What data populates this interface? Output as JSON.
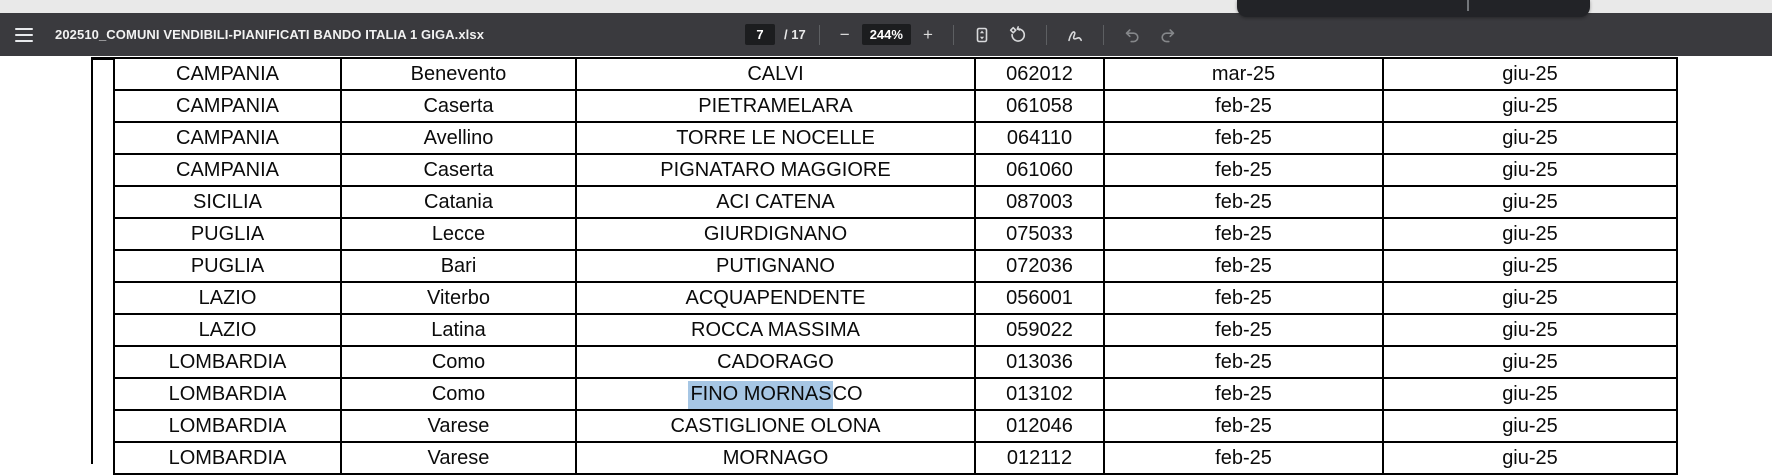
{
  "colors": {
    "toolbar_bg": "#3a3a3e",
    "control_box_bg": "#1c1d1f",
    "top_strip": "#e9e9e9",
    "overlay_chip_bg": "#222327",
    "selection_highlight": "#a6c6e4",
    "table_border": "#000000"
  },
  "toolbar": {
    "menu_icon": "hamburger-icon",
    "filename": "202510_COMUNI VENDIBILI-PIANIFICATI BANDO ITALIA 1 GIGA.xlsx",
    "page_number": "7",
    "page_count_label": "/ 17",
    "zoom_out_label": "−",
    "zoom_level": "244%",
    "zoom_in_label": "+",
    "icons": [
      "fit-to-page-icon",
      "rotate-icon",
      "draw-icon",
      "undo-icon",
      "redo-icon"
    ]
  },
  "table": {
    "rows": [
      {
        "cells": [
          "CAMPANIA",
          "Benevento",
          "CALVI",
          "062012",
          "mar-25",
          "giu-25"
        ]
      },
      {
        "cells": [
          "CAMPANIA",
          "Caserta",
          "PIETRAMELARA",
          "061058",
          "feb-25",
          "giu-25"
        ]
      },
      {
        "cells": [
          "CAMPANIA",
          "Avellino",
          "TORRE LE NOCELLE",
          "064110",
          "feb-25",
          "giu-25"
        ]
      },
      {
        "cells": [
          "CAMPANIA",
          "Caserta",
          "PIGNATARO MAGGIORE",
          "061060",
          "feb-25",
          "giu-25"
        ]
      },
      {
        "cells": [
          "SICILIA",
          "Catania",
          "ACI CATENA",
          "087003",
          "feb-25",
          "giu-25"
        ]
      },
      {
        "cells": [
          "PUGLIA",
          "Lecce",
          "GIURDIGNANO",
          "075033",
          "feb-25",
          "giu-25"
        ]
      },
      {
        "cells": [
          "PUGLIA",
          "Bari",
          "PUTIGNANO",
          "072036",
          "feb-25",
          "giu-25"
        ]
      },
      {
        "cells": [
          "LAZIO",
          "Viterbo",
          "ACQUAPENDENTE",
          "056001",
          "feb-25",
          "giu-25"
        ]
      },
      {
        "cells": [
          "LAZIO",
          "Latina",
          "ROCCA MASSIMA",
          "059022",
          "feb-25",
          "giu-25"
        ]
      },
      {
        "cells": [
          "LOMBARDIA",
          "Como",
          "CADORAGO",
          "013036",
          "feb-25",
          "giu-25"
        ]
      },
      {
        "cells": [
          "LOMBARDIA",
          "Como",
          "FINO MORNASCO",
          "013102",
          "feb-25",
          "giu-25"
        ]
      },
      {
        "cells": [
          "LOMBARDIA",
          "Varese",
          "CASTIGLIONE OLONA",
          "012046",
          "feb-25",
          "giu-25"
        ]
      },
      {
        "cells": [
          "LOMBARDIA",
          "Varese",
          "MORNAGO",
          "012112",
          "feb-25",
          "giu-25"
        ],
        "partial": true
      }
    ],
    "selection": {
      "row_index": 10,
      "cell_index": 2,
      "selected_text": "FINO MORNAS",
      "highlight_color": "#a6c6e4"
    }
  }
}
